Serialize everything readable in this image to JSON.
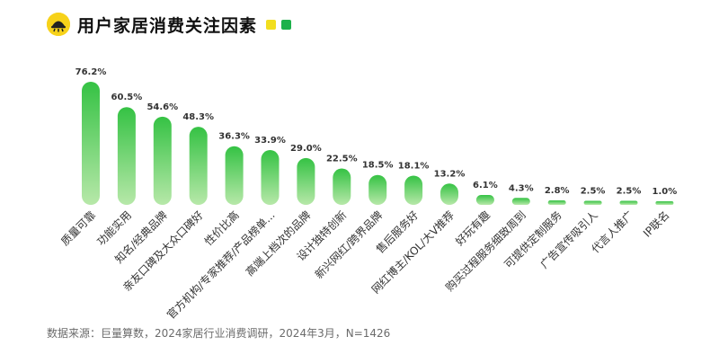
{
  "header": {
    "title": "用户家居消费关注因素",
    "logo_icon": "dome-logo-icon",
    "legend_colors": [
      "#f2de1f",
      "#1db14b"
    ]
  },
  "footer": {
    "source": "数据来源：巨量算数，2024家居行业消费调研，2024年3月，N=1426"
  },
  "chart_data": {
    "type": "bar",
    "title": "用户家居消费关注因素",
    "unit": "%",
    "categories": [
      "质量可靠",
      "功能实用",
      "知名/经典品牌",
      "亲友口碑及大众口碑好",
      "性价比高",
      "官方机构/专家推荐/产品榜单...",
      "高端上档次的品牌",
      "设计独特创新",
      "新兴网红/跨界品牌",
      "售后服务好",
      "网红博主/KOL/大V推荐",
      "好玩有趣",
      "购买过程服务细致周到",
      "可提供定制服务",
      "广告宣传吸引人",
      "代言人推广",
      "IP联名"
    ],
    "values": [
      76.2,
      60.5,
      54.6,
      48.3,
      36.3,
      33.9,
      29.0,
      22.5,
      18.5,
      18.1,
      13.2,
      6.1,
      4.3,
      2.8,
      2.5,
      2.5,
      1.0
    ],
    "value_labels": [
      "76.2%",
      "60.5%",
      "54.6%",
      "48.3%",
      "36.3%",
      "33.9%",
      "29.0%",
      "22.5%",
      "18.5%",
      "18.1%",
      "13.2%",
      "6.1%",
      "4.3%",
      "2.8%",
      "2.5%",
      "2.5%",
      "1.0%"
    ],
    "bar_color_top": "#35c244",
    "bar_color_bottom": "#b7e8a9",
    "grid": false,
    "legend": "none"
  }
}
